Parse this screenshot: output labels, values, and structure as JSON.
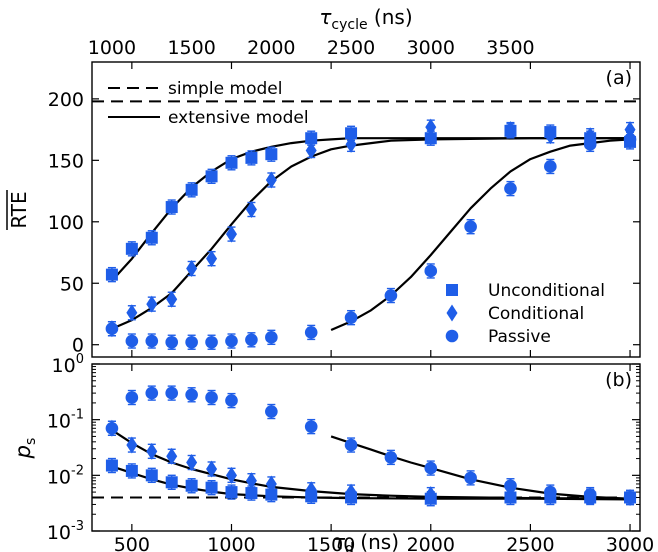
{
  "chart_data": [
    {
      "type": "scatter",
      "panel_label": "(a)",
      "ylabel": "RTE",
      "top_xlabel": "τ_cycle (ns)",
      "xlim": [
        300,
        3050
      ],
      "ylim": [
        -10,
        230
      ],
      "x_ticks": [
        500,
        1000,
        1500,
        2000,
        2500,
        3000
      ],
      "y_ticks": [
        0,
        50,
        100,
        150,
        200
      ],
      "top_ticks": [
        {
          "label": "1000",
          "tau_d": 400
        },
        {
          "label": "1500",
          "tau_d": 800
        },
        {
          "label": "2000",
          "tau_d": 1200
        },
        {
          "label": "2500",
          "tau_d": 1600
        },
        {
          "label": "3000",
          "tau_d": 2000
        },
        {
          "label": "3500",
          "tau_d": 2400
        }
      ],
      "legend_lines": [
        "simple model",
        "extensive model"
      ],
      "legend_lines_position": "top-left",
      "legend_markers_position": "bottom-right",
      "simple_model_value": 198,
      "series": [
        {
          "name": "Unconditional",
          "marker": "square",
          "x": [
            400,
            500,
            600,
            700,
            800,
            900,
            1000,
            1100,
            1200,
            1400,
            1600,
            2000,
            2400,
            2600,
            2800,
            3000
          ],
          "y": [
            57,
            78,
            87,
            112,
            126,
            137,
            148,
            152,
            155,
            168,
            172,
            168,
            174,
            173,
            168,
            165
          ]
        },
        {
          "name": "Conditional",
          "marker": "diamond",
          "x": [
            400,
            500,
            600,
            700,
            800,
            900,
            1000,
            1100,
            1200,
            1400,
            1600,
            2000,
            2400,
            2600,
            2800,
            3000
          ],
          "y": [
            13,
            26,
            33,
            37,
            62,
            70,
            90,
            110,
            134,
            158,
            163,
            177,
            175,
            170,
            170,
            175
          ]
        },
        {
          "name": "Passive",
          "marker": "circle",
          "x": [
            400,
            500,
            600,
            700,
            800,
            900,
            1000,
            1100,
            1200,
            1400,
            1600,
            1800,
            2000,
            2200,
            2400,
            2600,
            2800,
            3000
          ],
          "y": [
            13,
            3,
            3,
            2,
            2,
            2,
            3,
            4,
            6,
            10,
            22,
            40,
            60,
            96,
            127,
            145,
            163,
            167
          ]
        }
      ],
      "model_curves": [
        {
          "x": [
            400,
            500,
            600,
            700,
            800,
            900,
            1000,
            1100,
            1200,
            1300,
            1400,
            1500,
            1600,
            1800,
            2000,
            2500,
            3000
          ],
          "y": [
            52,
            70,
            91,
            111,
            128,
            141,
            151,
            157,
            161,
            164,
            166,
            167,
            168,
            168,
            168,
            168,
            168
          ]
        },
        {
          "x": [
            400,
            500,
            600,
            700,
            800,
            900,
            1000,
            1100,
            1200,
            1300,
            1400,
            1500,
            1600,
            1700,
            1800,
            2000,
            2500,
            3000
          ],
          "y": [
            13,
            20,
            30,
            42,
            60,
            78,
            98,
            117,
            133,
            145,
            153,
            159,
            162,
            164,
            166,
            167,
            168,
            168
          ]
        },
        {
          "x": [
            1500,
            1600,
            1700,
            1800,
            1900,
            2000,
            2100,
            2200,
            2300,
            2400,
            2500,
            2600,
            2700,
            2800,
            2900,
            3000
          ],
          "y": [
            12,
            19,
            28,
            40,
            55,
            73,
            92,
            111,
            127,
            141,
            151,
            157,
            162,
            164,
            166,
            167
          ]
        }
      ]
    },
    {
      "type": "scatter",
      "panel_label": "(b)",
      "ylabel": "p_s",
      "xlabel": "τ_d (ns)",
      "y_scale": "log",
      "xlim": [
        300,
        3050
      ],
      "ylim": [
        0.001,
        1
      ],
      "x_ticks": [
        500,
        1000,
        1500,
        2000,
        2500,
        3000
      ],
      "y_ticks": [
        {
          "value": 0.001,
          "base": "10",
          "exp": "-3"
        },
        {
          "value": 0.01,
          "base": "10",
          "exp": "-2"
        },
        {
          "value": 0.1,
          "base": "10",
          "exp": "-1"
        },
        {
          "value": 1,
          "base": "10",
          "exp": "0"
        }
      ],
      "simple_model_value": 0.004,
      "series": [
        {
          "name": "Unconditional",
          "marker": "square",
          "x": [
            400,
            500,
            600,
            700,
            800,
            900,
            1000,
            1100,
            1200,
            1400,
            1600,
            2000,
            2400,
            2600,
            2800,
            3000
          ],
          "y": [
            0.015,
            0.012,
            0.01,
            0.0075,
            0.0065,
            0.006,
            0.005,
            0.0048,
            0.0045,
            0.0042,
            0.004,
            0.0038,
            0.004,
            0.004,
            0.004,
            0.004
          ]
        },
        {
          "name": "Conditional",
          "marker": "diamond",
          "x": [
            400,
            500,
            600,
            700,
            800,
            900,
            1000,
            1100,
            1200,
            1400,
            1600,
            2000,
            2400,
            2600,
            2800,
            3000
          ],
          "y": [
            0.07,
            0.035,
            0.027,
            0.022,
            0.017,
            0.013,
            0.01,
            0.008,
            0.007,
            0.0055,
            0.005,
            0.0045,
            0.0045,
            0.0045,
            0.0042,
            0.004
          ]
        },
        {
          "name": "Passive",
          "marker": "circle",
          "x": [
            400,
            500,
            600,
            700,
            800,
            900,
            1000,
            1200,
            1400,
            1600,
            1800,
            2000,
            2200,
            2400,
            2600,
            2800,
            3000
          ],
          "y": [
            0.07,
            0.25,
            0.3,
            0.3,
            0.28,
            0.25,
            0.22,
            0.14,
            0.075,
            0.035,
            0.021,
            0.0135,
            0.009,
            0.0065,
            0.005,
            0.0045,
            0.004
          ]
        }
      ],
      "model_curves": [
        {
          "x": [
            400,
            500,
            600,
            700,
            800,
            900,
            1000,
            1200,
            1400,
            1600,
            2000,
            2500,
            3000
          ],
          "y": [
            0.0145,
            0.011,
            0.0085,
            0.0068,
            0.0058,
            0.0051,
            0.0046,
            0.0042,
            0.004,
            0.0039,
            0.0038,
            0.0038,
            0.0037
          ]
        },
        {
          "x": [
            400,
            500,
            600,
            700,
            800,
            900,
            1000,
            1100,
            1200,
            1400,
            1600,
            1800,
            2000,
            2500,
            3000
          ],
          "y": [
            0.065,
            0.038,
            0.024,
            0.017,
            0.013,
            0.0105,
            0.0085,
            0.0072,
            0.0062,
            0.0052,
            0.0046,
            0.0043,
            0.0041,
            0.0039,
            0.0038
          ]
        },
        {
          "x": [
            1500,
            1600,
            1700,
            1800,
            1900,
            2000,
            2200,
            2400,
            2600,
            2800,
            3000
          ],
          "y": [
            0.05,
            0.038,
            0.029,
            0.022,
            0.017,
            0.0135,
            0.0085,
            0.006,
            0.0047,
            0.0041,
            0.0038
          ]
        }
      ]
    }
  ],
  "colors": {
    "marker": "#1f5ee8",
    "axis": "#000000",
    "curve": "#000000"
  },
  "icons": {
    "square": "square-marker-icon",
    "diamond": "diamond-marker-icon",
    "circle": "circle-marker-icon"
  }
}
